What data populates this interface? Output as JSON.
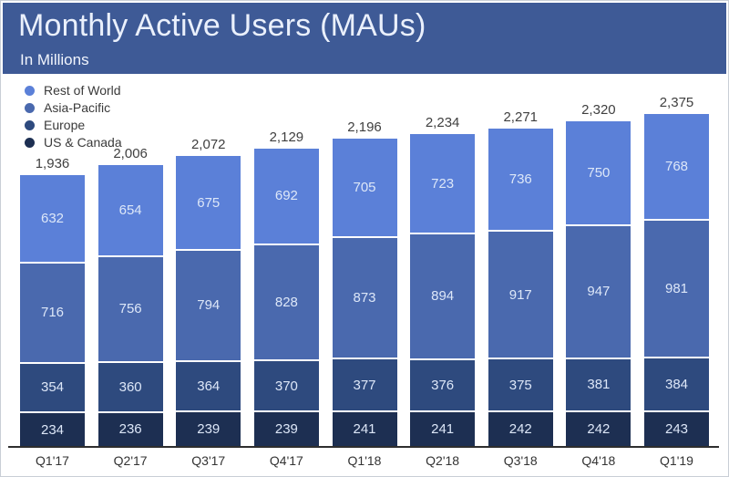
{
  "header": {
    "title": "Monthly Active Users (MAUs)",
    "subtitle": "In Millions"
  },
  "colors": {
    "header_bg": "#3e5a96",
    "rest_of_world": "#5b80d8",
    "asia_pacific": "#4a69ae",
    "europe": "#2e4a7e",
    "us_canada": "#1d2f52",
    "total_label_text": "#3f3f3f",
    "segment_label_text": "#dde7f8",
    "axis_line": "#2e2e2e",
    "axis_label_text": "#333333",
    "chart_background": "#ffffff"
  },
  "legend": [
    {
      "label": "Rest of World",
      "color": "#5b80d8"
    },
    {
      "label": "Asia-Pacific",
      "color": "#4a69ae"
    },
    {
      "label": "Europe",
      "color": "#2e4a7e"
    },
    {
      "label": "US & Canada",
      "color": "#1d2f52"
    }
  ],
  "chart_data": {
    "type": "bar",
    "stacked": true,
    "title": "Monthly Active Users (MAUs)",
    "subtitle": "In Millions",
    "unit": "millions",
    "grid": false,
    "legend_position": "top-left",
    "categories": [
      "Q1'17",
      "Q2'17",
      "Q3'17",
      "Q4'17",
      "Q1'18",
      "Q2'18",
      "Q3'18",
      "Q4'18",
      "Q1'19"
    ],
    "series": [
      {
        "name": "US & Canada",
        "color": "#1d2f52",
        "values": [
          234,
          236,
          239,
          239,
          241,
          241,
          242,
          242,
          243
        ]
      },
      {
        "name": "Europe",
        "color": "#2e4a7e",
        "values": [
          354,
          360,
          364,
          370,
          377,
          376,
          375,
          381,
          384
        ]
      },
      {
        "name": "Asia-Pacific",
        "color": "#4a69ae",
        "values": [
          716,
          756,
          794,
          828,
          873,
          894,
          917,
          947,
          981
        ]
      },
      {
        "name": "Rest of World",
        "color": "#5b80d8",
        "values": [
          632,
          654,
          675,
          692,
          705,
          723,
          736,
          750,
          768
        ]
      }
    ],
    "totals": [
      1936,
      2006,
      2072,
      2129,
      2196,
      2234,
      2271,
      2320,
      2375
    ],
    "total_labels": [
      "1,936",
      "2,006",
      "2,072",
      "2,129",
      "2,196",
      "2,234",
      "2,271",
      "2,320",
      "2,375"
    ],
    "ylim": [
      0,
      2375
    ]
  }
}
